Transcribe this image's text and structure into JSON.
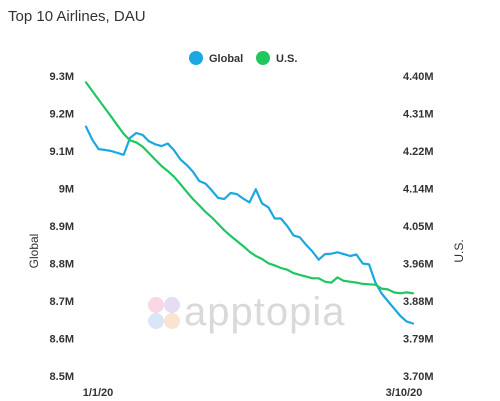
{
  "chart_data": {
    "type": "line",
    "title": "Top 10 Airlines, DAU",
    "x_labels": [
      "1/1/20",
      "3/10/20"
    ],
    "legend": {
      "placement": "top-center"
    },
    "y_left": {
      "label": "Global",
      "range": [
        8.5,
        9.3
      ],
      "ticks": [
        "8.5M",
        "8.6M",
        "8.7M",
        "8.8M",
        "8.9M",
        "9M",
        "9.1M",
        "9.2M",
        "9.3M"
      ]
    },
    "y_right": {
      "label": "U.S.",
      "range": [
        3.7,
        4.4
      ],
      "ticks": [
        "3.70M",
        "3.79M",
        "3.88M",
        "3.96M",
        "4.05M",
        "4.14M",
        "4.22M",
        "4.31M",
        "4.40M"
      ]
    },
    "series": [
      {
        "name": "Global",
        "axis": "left",
        "color": "#1ba7e0",
        "values": [
          9.165,
          9.13,
          9.105,
          9.103,
          9.1,
          9.095,
          9.09,
          9.135,
          9.148,
          9.143,
          9.126,
          9.118,
          9.113,
          9.12,
          9.102,
          9.078,
          9.063,
          9.045,
          9.02,
          9.013,
          8.995,
          8.975,
          8.972,
          8.988,
          8.985,
          8.973,
          8.963,
          8.998,
          8.96,
          8.95,
          8.92,
          8.92,
          8.9,
          8.875,
          8.87,
          8.85,
          8.832,
          8.81,
          8.825,
          8.826,
          8.83,
          8.825,
          8.82,
          8.824,
          8.8,
          8.798,
          8.75,
          8.72,
          8.7,
          8.68,
          8.66,
          8.645,
          8.64
        ]
      },
      {
        "name": "U.S.",
        "axis": "right",
        "color": "#1ec760",
        "values": [
          4.385,
          4.365,
          4.345,
          4.325,
          4.305,
          4.285,
          4.265,
          4.25,
          4.245,
          4.235,
          4.22,
          4.205,
          4.19,
          4.178,
          4.165,
          4.148,
          4.13,
          4.113,
          4.098,
          4.083,
          4.07,
          4.055,
          4.04,
          4.027,
          4.015,
          4.003,
          3.99,
          3.98,
          3.973,
          3.963,
          3.958,
          3.952,
          3.948,
          3.94,
          3.936,
          3.932,
          3.928,
          3.928,
          3.92,
          3.918,
          3.93,
          3.922,
          3.92,
          3.918,
          3.915,
          3.914,
          3.913,
          3.904,
          3.902,
          3.895,
          3.893,
          3.895,
          3.893
        ]
      }
    ]
  },
  "watermark": {
    "text": "apptopia"
  }
}
